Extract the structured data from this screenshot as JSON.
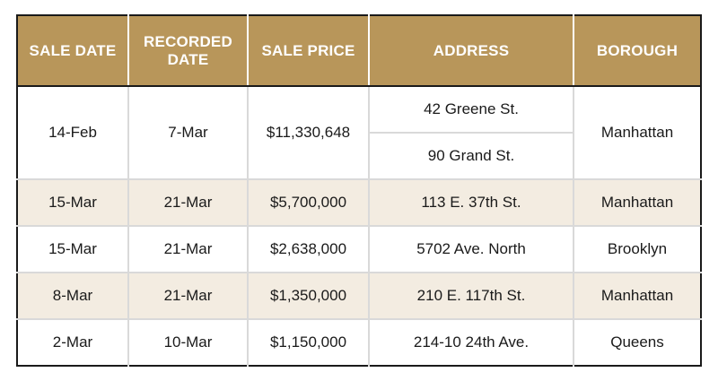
{
  "columns": [
    "SALE DATE",
    "RECORDED DATE",
    "SALE PRICE",
    "ADDRESS",
    "BOROUGH"
  ],
  "header_lines": {
    "recorded_1": "RECORDED",
    "recorded_2": "DATE"
  },
  "rows": [
    {
      "sale_date": "14-Feb",
      "recorded_date": "7-Mar",
      "sale_price": "$11,330,648",
      "addresses": [
        "42 Greene St.",
        "90 Grand St."
      ],
      "borough": "Manhattan"
    },
    {
      "sale_date": "15-Mar",
      "recorded_date": "21-Mar",
      "sale_price": "$5,700,000",
      "address": "113 E. 37th St.",
      "borough": "Manhattan"
    },
    {
      "sale_date": "15-Mar",
      "recorded_date": "21-Mar",
      "sale_price": "$2,638,000",
      "address": "5702 Ave. North",
      "borough": "Brooklyn"
    },
    {
      "sale_date": "8-Mar",
      "recorded_date": "21-Mar",
      "sale_price": "$1,350,000",
      "address": "210 E. 117th St.",
      "borough": "Manhattan"
    },
    {
      "sale_date": "2-Mar",
      "recorded_date": "10-Mar",
      "sale_price": "$1,150,000",
      "address": "214-10 24th Ave.",
      "borough": "Queens"
    }
  ],
  "colors": {
    "header_bg": "#b8965a",
    "alt_row_bg": "#f3ece1",
    "border": "#1a1a1a"
  }
}
